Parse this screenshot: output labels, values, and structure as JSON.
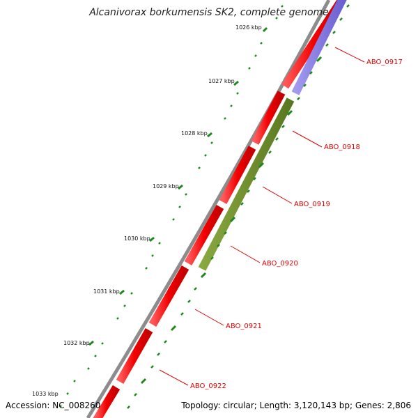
{
  "title": "Alcanivorax borkumensis SK2, complete genome",
  "accession": "Accession: NC_008260",
  "summary": "Topology: circular; Length: 3,120,143 bp; Genes: 2,806",
  "colors": {
    "backbone": "#8c8c8c",
    "forward_cds": "#f20000",
    "reverse_cds_blue": "#7a70dc",
    "reverse_cds_olive": "#6e8c28",
    "ticks": "#1a8a1a",
    "gene_label": "#e00000"
  },
  "kbp_labels": [
    "1026 kbp",
    "1027 kbp",
    "1028 kbp",
    "1029 kbp",
    "1030 kbp",
    "1031 kbp",
    "1032 kbp",
    "1033 kbp"
  ],
  "gene_labels": [
    "ABO_0917",
    "ABO_0918",
    "ABO_0919",
    "ABO_0920",
    "ABO_0921",
    "ABO_0922"
  ]
}
